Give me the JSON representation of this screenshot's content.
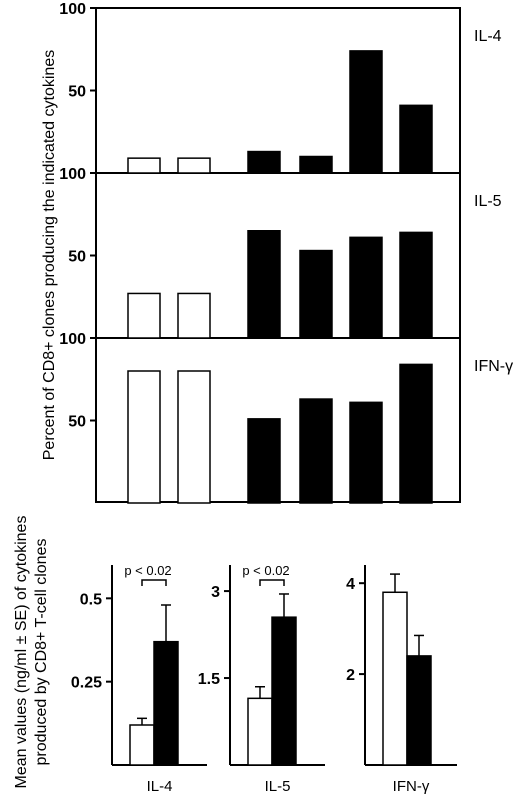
{
  "chart_data": [
    {
      "type": "bar",
      "ylabel": "Percent of CD8+ clones producing the indicated cytokines",
      "ylim": [
        0,
        100
      ],
      "panels": [
        {
          "name": "IL-4",
          "y_ticks": [
            "100",
            "50"
          ],
          "values": [
            9,
            9,
            null,
            13,
            10,
            74,
            41
          ],
          "fills": [
            "#ffffff",
            "#ffffff",
            null,
            "#000000",
            "#000000",
            "#000000",
            "#000000"
          ]
        },
        {
          "name": "IL-5",
          "y_ticks": [
            "100",
            "50"
          ],
          "values": [
            27,
            27,
            null,
            65,
            53,
            61,
            64
          ],
          "fills": [
            "#ffffff",
            "#ffffff",
            null,
            "#000000",
            "#000000",
            "#000000",
            "#000000"
          ]
        },
        {
          "name": "IFN-γ",
          "y_ticks": [
            "100",
            "50"
          ],
          "values": [
            80,
            80,
            null,
            51,
            63,
            61,
            84
          ],
          "fills": [
            "#ffffff",
            "#ffffff",
            null,
            "#000000",
            "#000000",
            "#000000",
            "#000000"
          ]
        }
      ]
    },
    {
      "type": "bar",
      "ylabel": "Mean values (ng/ml ± SE) of cytokines produced by CD8+ T-cell clones",
      "panels": [
        {
          "category": "IL-4",
          "ylim": [
            0,
            0.6
          ],
          "y_ticks": [
            {
              "value": 0.5,
              "label": "0.5"
            },
            {
              "value": 0.25,
              "label": "0.25"
            }
          ],
          "values": [
            0.12,
            0.37
          ],
          "errors": [
            0.02,
            0.11
          ],
          "fills": [
            "#ffffff",
            "#000000"
          ],
          "significance": "p < 0.02"
        },
        {
          "category": "IL-5",
          "ylim": [
            0,
            3.45
          ],
          "y_ticks": [
            {
              "value": 3,
              "label": "3"
            },
            {
              "value": 1.5,
              "label": "1.5"
            }
          ],
          "values": [
            1.15,
            2.55
          ],
          "errors": [
            0.2,
            0.4
          ],
          "fills": [
            "#ffffff",
            "#000000"
          ],
          "significance": "p < 0.02"
        },
        {
          "category": "IFN-γ",
          "ylim": [
            0,
            4.4
          ],
          "y_ticks": [
            {
              "value": 4,
              "label": "4"
            },
            {
              "value": 2,
              "label": "2"
            }
          ],
          "values": [
            3.8,
            2.4
          ],
          "errors": [
            0.4,
            0.45
          ],
          "fills": [
            "#ffffff",
            "#000000"
          ],
          "significance": ""
        }
      ]
    }
  ]
}
